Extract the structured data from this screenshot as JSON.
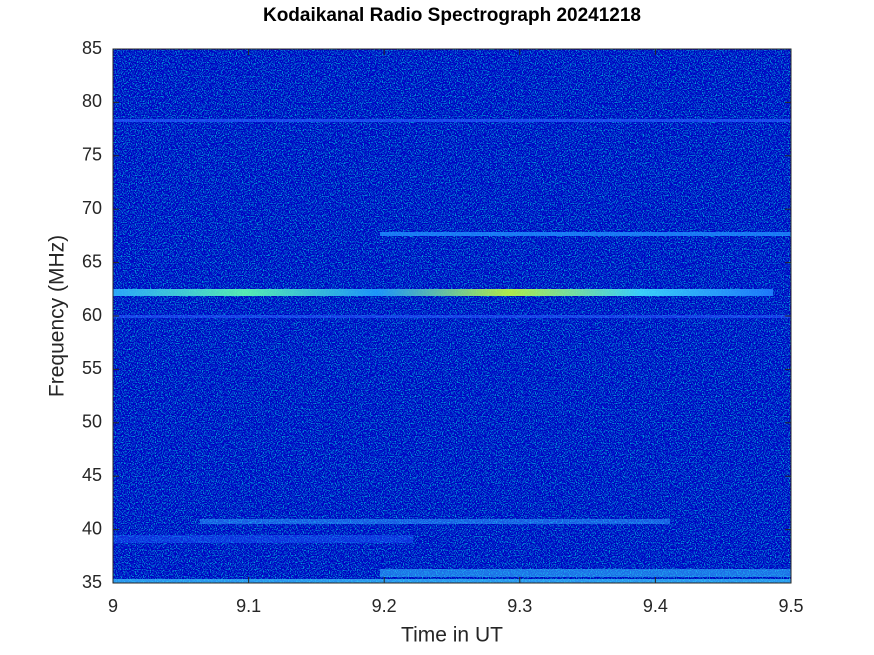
{
  "chart_data": {
    "type": "heatmap",
    "title": "Kodaikanal Radio Spectrograph  20241218",
    "x_label": "Time in UT",
    "y_label": "Frequency (MHz)",
    "xlim": [
      9,
      9.5
    ],
    "xticks": [
      9,
      9.1,
      9.2,
      9.3,
      9.4,
      9.5
    ],
    "ylim": [
      35,
      85
    ],
    "yticks": [
      35,
      40,
      45,
      50,
      55,
      60,
      65,
      70,
      75,
      80,
      85
    ],
    "colormap": "jet"
  }
}
